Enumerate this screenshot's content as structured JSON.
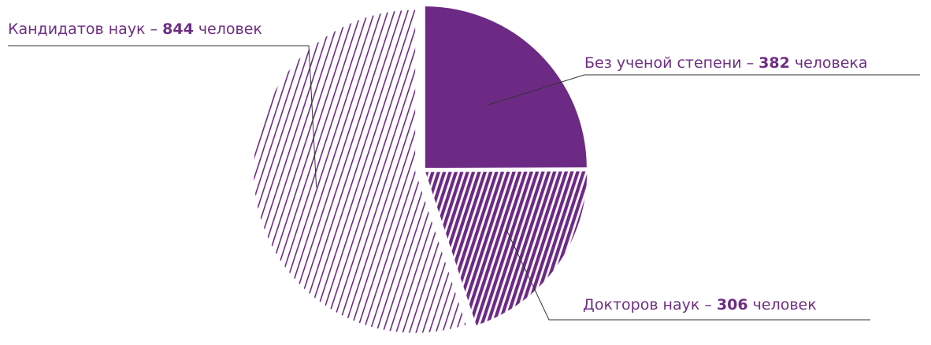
{
  "chart_data": {
    "type": "pie",
    "slices": [
      {
        "label_prefix": "Без ученой степени – ",
        "value": 382,
        "value_text": "382",
        "label_suffix": " человека",
        "fill": "solid"
      },
      {
        "label_prefix": "Докторов наук – ",
        "value": 306,
        "value_text": "306",
        "label_suffix": " человек",
        "fill": "hatched-dense"
      },
      {
        "label_prefix": "Кандидатов наук – ",
        "value": 844,
        "value_text": "844",
        "label_suffix": " человек",
        "fill": "hatched-sparse"
      }
    ],
    "start_angle_deg": 0,
    "direction": "clockwise",
    "exploded": true
  },
  "colors": {
    "accent": "#6d2a85",
    "line": "#333333",
    "background": "#ffffff"
  }
}
